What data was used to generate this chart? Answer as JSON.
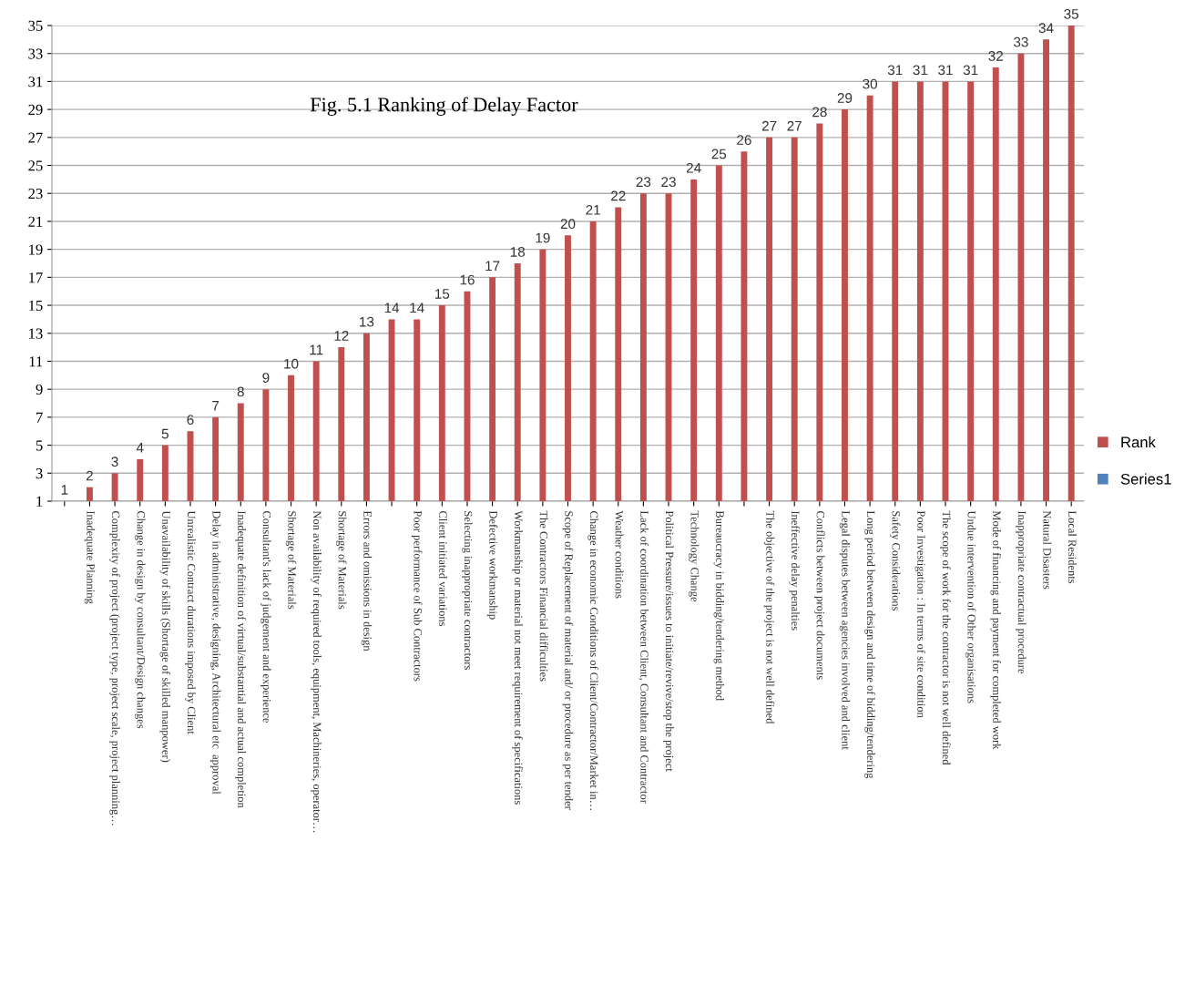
{
  "chart_data": {
    "type": "bar",
    "title": "Fig. 5.1 Ranking of Delay Factor",
    "categories": [
      null,
      "Inadequate Planning",
      "Complexity of project (project type, project scale, project planning…",
      "Change in design by consultant/Design changes",
      "Unavailability of skills (Shortage of skilled manpower)",
      "Unrealistic Contract durations imposed by Client",
      "Delay in administrative, designing, Architectural etc  approval",
      "Inadequate definition of virtual/substantial and actual completion",
      "Consultant's lack of judgement and experience",
      "Shortage of Materials",
      "Non availability of required tools, equipment, Machineries, operator…",
      "Shortage of Materials",
      "Errors and omissions in design",
      null,
      "Poor performance of Sub Contractors",
      "Client initiated variations",
      "Selecting inappropriate contractors",
      "Defective workmanship",
      "Workmanship or material not meet requirement of specifications",
      "The Contractors Financial difficulties",
      "Scope of Replacement of material and/ or procedure as per tender",
      "Change in economic Conditions of Client/Contractor/Market in…",
      "Weather conditions",
      "Lack of coordination between Client, Consultant and Contractor",
      "Political Pressure/issues to initiate/revive/stop the project",
      "Technology Change",
      "Bureaucracy in bidding/tendering method",
      null,
      "The objective of the project is not well defined",
      "Ineffective delay penalties",
      "Conflicts between project documents",
      "Legal disputes between agencies involved and client",
      "Long period between design and time of bidding/tendering",
      "Safety Considerations",
      "Poor Investigation : In terms of site condition",
      "The scope of work for the contractor is not well defined",
      "Undue intervention of Other organisations",
      "Mode of financing and payment for completed work",
      "Inappropriate contractual procedure",
      "Natural Disasters",
      "Local Residents"
    ],
    "series": [
      {
        "name": "Rank",
        "color": "#c0504d",
        "values": [
          1,
          2,
          3,
          4,
          5,
          6,
          7,
          8,
          9,
          10,
          11,
          12,
          13,
          14,
          14,
          15,
          16,
          17,
          18,
          19,
          20,
          21,
          22,
          23,
          23,
          24,
          25,
          26,
          27,
          27,
          28,
          29,
          30,
          31,
          31,
          31,
          31,
          32,
          33,
          34,
          35
        ]
      },
      {
        "name": "Series1",
        "color": "#4f81bd",
        "values": [
          null,
          null,
          null,
          null,
          null,
          null,
          null,
          null,
          null,
          null,
          null,
          null,
          null,
          null,
          null,
          null,
          null,
          null,
          null,
          null,
          null,
          null,
          null,
          null,
          null,
          null,
          null,
          null,
          null,
          null,
          null,
          null,
          null,
          null,
          null,
          null,
          null,
          null,
          null,
          null,
          null
        ]
      }
    ],
    "ylim": [
      1,
      35
    ],
    "yticks": [
      1,
      3,
      5,
      7,
      9,
      11,
      13,
      15,
      17,
      19,
      21,
      23,
      25,
      27,
      29,
      31,
      33,
      35
    ],
    "grid": "y",
    "data_labels": true,
    "legend": "right"
  }
}
